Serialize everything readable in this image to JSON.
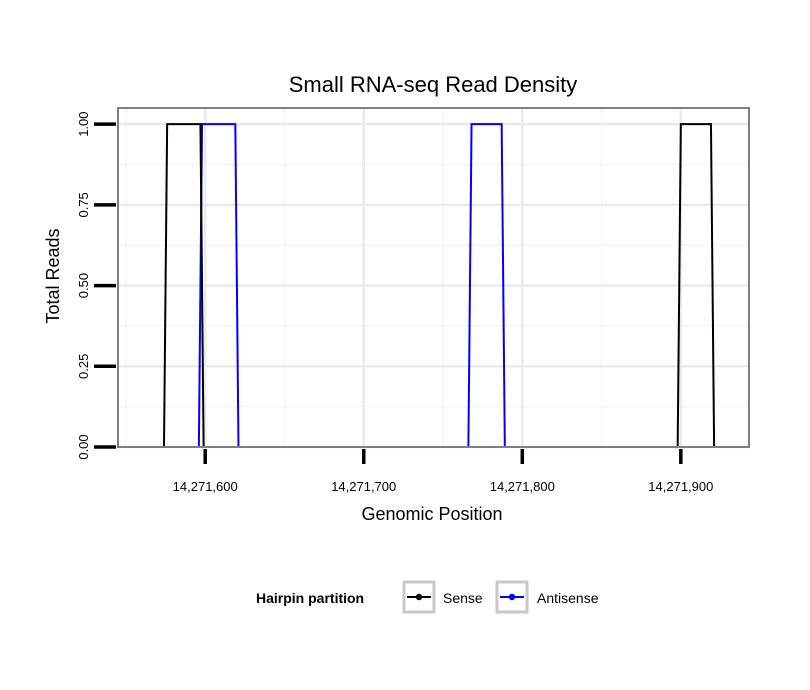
{
  "chart_data": {
    "type": "line",
    "title": "Small RNA-seq Read Density",
    "xlabel": "Genomic Position",
    "ylabel": "Total Reads",
    "xlim": [
      14271545,
      14271943
    ],
    "ylim": [
      0,
      1.05
    ],
    "x_ticks": [
      {
        "value": 14271600,
        "label": "14,271,600"
      },
      {
        "value": 14271700,
        "label": "14,271,700"
      },
      {
        "value": 14271800,
        "label": "14,271,800"
      },
      {
        "value": 14271900,
        "label": "14,271,900"
      }
    ],
    "y_ticks": [
      {
        "value": 0,
        "label": "0.00"
      },
      {
        "value": 0.25,
        "label": "0.25"
      },
      {
        "value": 0.5,
        "label": "0.50"
      },
      {
        "value": 0.75,
        "label": "0.75"
      },
      {
        "value": 1.0,
        "label": "1.00"
      }
    ],
    "grid": true,
    "legend": {
      "title": "Hairpin partition",
      "position": "bottom"
    },
    "series": [
      {
        "name": "Sense",
        "color": "#000000",
        "x": [
          14271563,
          14271574,
          14271576,
          14271597,
          14271599,
          14271770,
          14271772,
          14271789,
          14271791,
          14271898,
          14271900,
          14271919,
          14271921,
          14271939
        ],
        "values": [
          0,
          0,
          1,
          1,
          0,
          0,
          0,
          0,
          0,
          0,
          1,
          1,
          0,
          0
        ]
      },
      {
        "name": "Antisense",
        "color": "#0000ff",
        "x": [
          14271563,
          14271596,
          14271598,
          14271619,
          14271621,
          14271766,
          14271768,
          14271787,
          14271789,
          14271939
        ],
        "values": [
          0,
          0,
          1,
          1,
          0,
          0,
          1,
          1,
          0,
          0
        ]
      }
    ]
  }
}
